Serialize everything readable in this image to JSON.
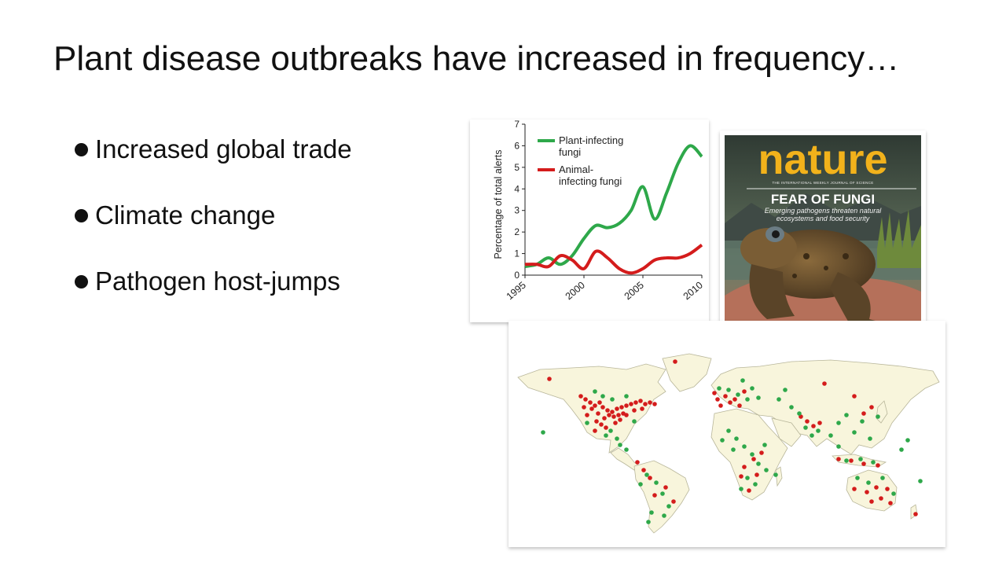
{
  "slide": {
    "title": "Plant disease outbreaks have increased in frequency…",
    "bullets": [
      "Increased global trade",
      "Climate change",
      "Pathogen host-jumps"
    ]
  },
  "chart_data": {
    "type": "line",
    "title": "",
    "xlabel": "",
    "ylabel": "Percentage of total alerts",
    "xlim": [
      1995,
      2010
    ],
    "ylim": [
      0,
      7
    ],
    "yticks": [
      0,
      1,
      2,
      3,
      4,
      5,
      6,
      7
    ],
    "xticks": [
      1995,
      2000,
      2005,
      2010
    ],
    "legend_placement": "top-left",
    "series": [
      {
        "name": "Plant-infecting fungi",
        "color": "#2ea84a",
        "x": [
          1995,
          1996,
          1997,
          1998,
          1999,
          2000,
          2001,
          2002,
          2003,
          2004,
          2005,
          2006,
          2007,
          2008,
          2009,
          2010
        ],
        "y": [
          0.4,
          0.5,
          0.8,
          0.5,
          0.9,
          1.7,
          2.3,
          2.2,
          2.4,
          3.0,
          4.1,
          2.6,
          3.8,
          5.2,
          6.0,
          5.5
        ]
      },
      {
        "name": "Animal-infecting fungi",
        "color": "#d41c1c",
        "x": [
          1995,
          1996,
          1997,
          1998,
          1999,
          2000,
          2001,
          2002,
          2003,
          2004,
          2005,
          2006,
          2007,
          2008,
          2009,
          2010
        ],
        "y": [
          0.5,
          0.5,
          0.4,
          0.9,
          0.7,
          0.3,
          1.1,
          0.8,
          0.3,
          0.1,
          0.3,
          0.7,
          0.8,
          0.8,
          1.0,
          1.4
        ]
      }
    ]
  },
  "legend": {
    "plant_line1": "Plant-infecting",
    "plant_line2": "fungi",
    "animal_line1": "Animal-",
    "animal_line2": "infecting fungi"
  },
  "cover": {
    "masthead": "nature",
    "tagline": "THE INTERNATIONAL WEEKLY JOURNAL OF SCIENCE",
    "headline": "FEAR OF FUNGI",
    "subhead_line1": "Emerging pathogens threaten natural",
    "subhead_line2": "ecosystems and food security",
    "colors": {
      "masthead": "#f2b21b",
      "background_dark": "#3b4a3c"
    }
  },
  "map": {
    "colors": {
      "land": "#f8f5dc",
      "ocean": "#ffffff",
      "coast": "#b8b69a",
      "plant": "#2ea84a",
      "animal": "#d41c1c"
    }
  }
}
